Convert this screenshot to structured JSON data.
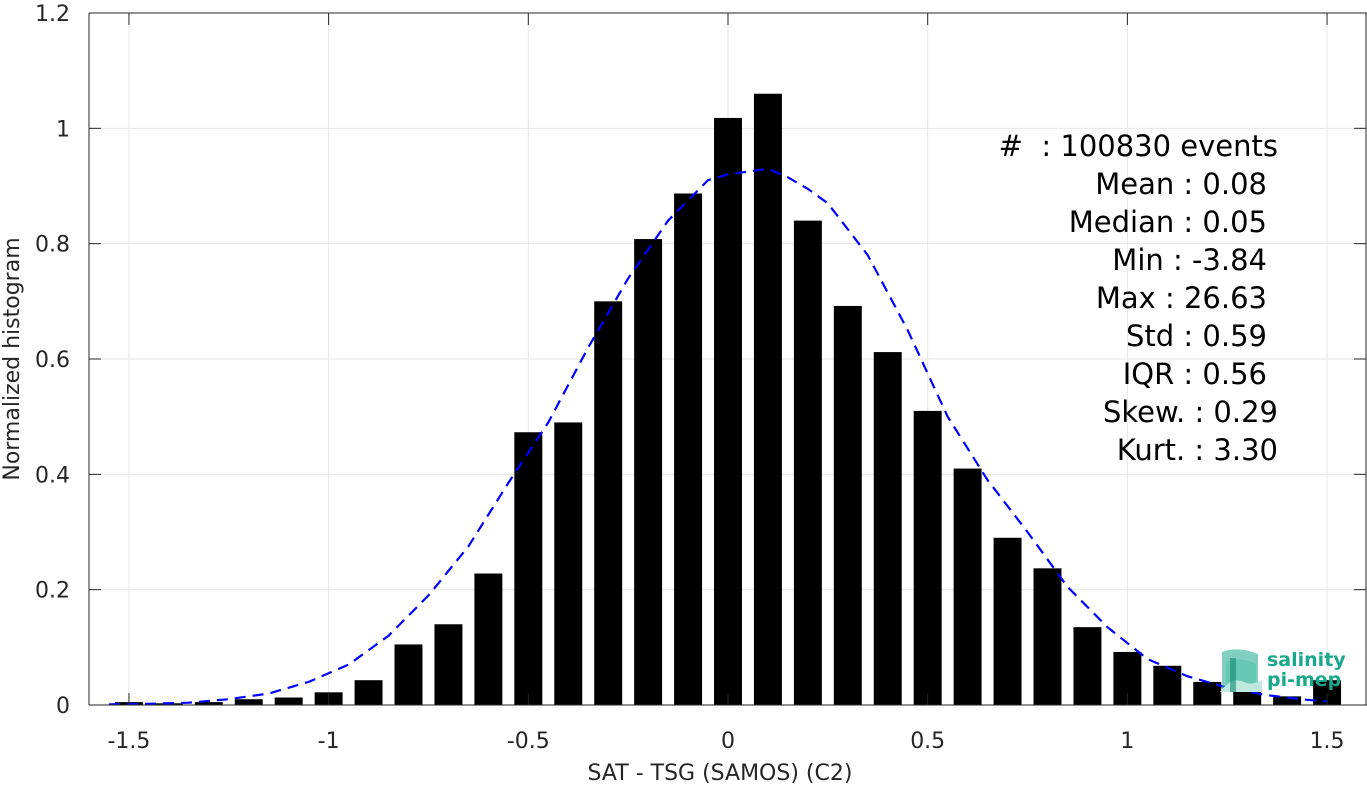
{
  "chart_data": {
    "type": "bar",
    "xlabel": "SAT - TSG (SAMOS) (C2)",
    "ylabel": "Normalized histogram",
    "xlim": [
      -1.6,
      1.6
    ],
    "ylim": [
      0,
      1.2
    ],
    "xticks": [
      -1.5,
      -1,
      -0.5,
      0,
      0.5,
      1,
      1.5
    ],
    "xtick_labels": [
      "-1.5",
      "-1",
      "-0.5",
      "0",
      "0.5",
      "1",
      "1.5"
    ],
    "yticks": [
      0,
      0.2,
      0.4,
      0.6,
      0.8,
      1,
      1.2
    ],
    "ytick_labels": [
      "0",
      "0.2",
      "0.4",
      "0.6",
      "0.8",
      "1",
      "1.2"
    ],
    "grid": true,
    "bar_color": "#000000",
    "bars": {
      "x": [
        -1.5,
        -1.4,
        -1.3,
        -1.2,
        -1.1,
        -1.0,
        -0.9,
        -0.8,
        -0.7,
        -0.6,
        -0.5,
        -0.4,
        -0.3,
        -0.2,
        -0.1,
        0.0,
        0.1,
        0.2,
        0.3,
        0.4,
        0.5,
        0.6,
        0.7,
        0.8,
        0.9,
        1.0,
        1.1,
        1.2,
        1.3,
        1.4,
        1.5
      ],
      "values": [
        0.005,
        0.003,
        0.005,
        0.01,
        0.013,
        0.022,
        0.043,
        0.105,
        0.14,
        0.228,
        0.473,
        0.49,
        0.7,
        0.808,
        0.887,
        1.018,
        1.06,
        0.84,
        0.692,
        0.612,
        0.51,
        0.41,
        0.29,
        0.237,
        0.135,
        0.092,
        0.068,
        0.04,
        0.025,
        0.015,
        0.043
      ]
    },
    "fit_curve": {
      "style": "dashed",
      "color": "#0000ff",
      "x": [
        -1.55,
        -1.45,
        -1.35,
        -1.25,
        -1.15,
        -1.05,
        -0.95,
        -0.85,
        -0.75,
        -0.65,
        -0.55,
        -0.45,
        -0.35,
        -0.25,
        -0.15,
        -0.05,
        0.0,
        0.05,
        0.1,
        0.15,
        0.2,
        0.25,
        0.35,
        0.45,
        0.55,
        0.65,
        0.75,
        0.85,
        0.95,
        1.05,
        1.15,
        1.25,
        1.35,
        1.45,
        1.5
      ],
      "y": [
        0.001,
        0.002,
        0.004,
        0.01,
        0.02,
        0.04,
        0.07,
        0.12,
        0.19,
        0.275,
        0.385,
        0.49,
        0.62,
        0.74,
        0.84,
        0.91,
        0.92,
        0.925,
        0.93,
        0.915,
        0.895,
        0.87,
        0.78,
        0.65,
        0.5,
        0.39,
        0.3,
        0.205,
        0.135,
        0.08,
        0.05,
        0.03,
        0.017,
        0.009,
        0.006
      ]
    },
    "stats": [
      {
        "label": "#  : 100830 events"
      },
      {
        "label": "Mean : 0.08"
      },
      {
        "label": "Median : 0.05"
      },
      {
        "label": "Min : -3.84"
      },
      {
        "label": "Max : 26.63"
      },
      {
        "label": "Std : 0.59"
      },
      {
        "label": "IQR : 0.56"
      },
      {
        "label": "Skew. : 0.29"
      },
      {
        "label": "Kurt. : 3.30"
      }
    ]
  },
  "logo": {
    "line1": "salinity",
    "line2": "pi-mep",
    "color": "#1aa88c"
  }
}
